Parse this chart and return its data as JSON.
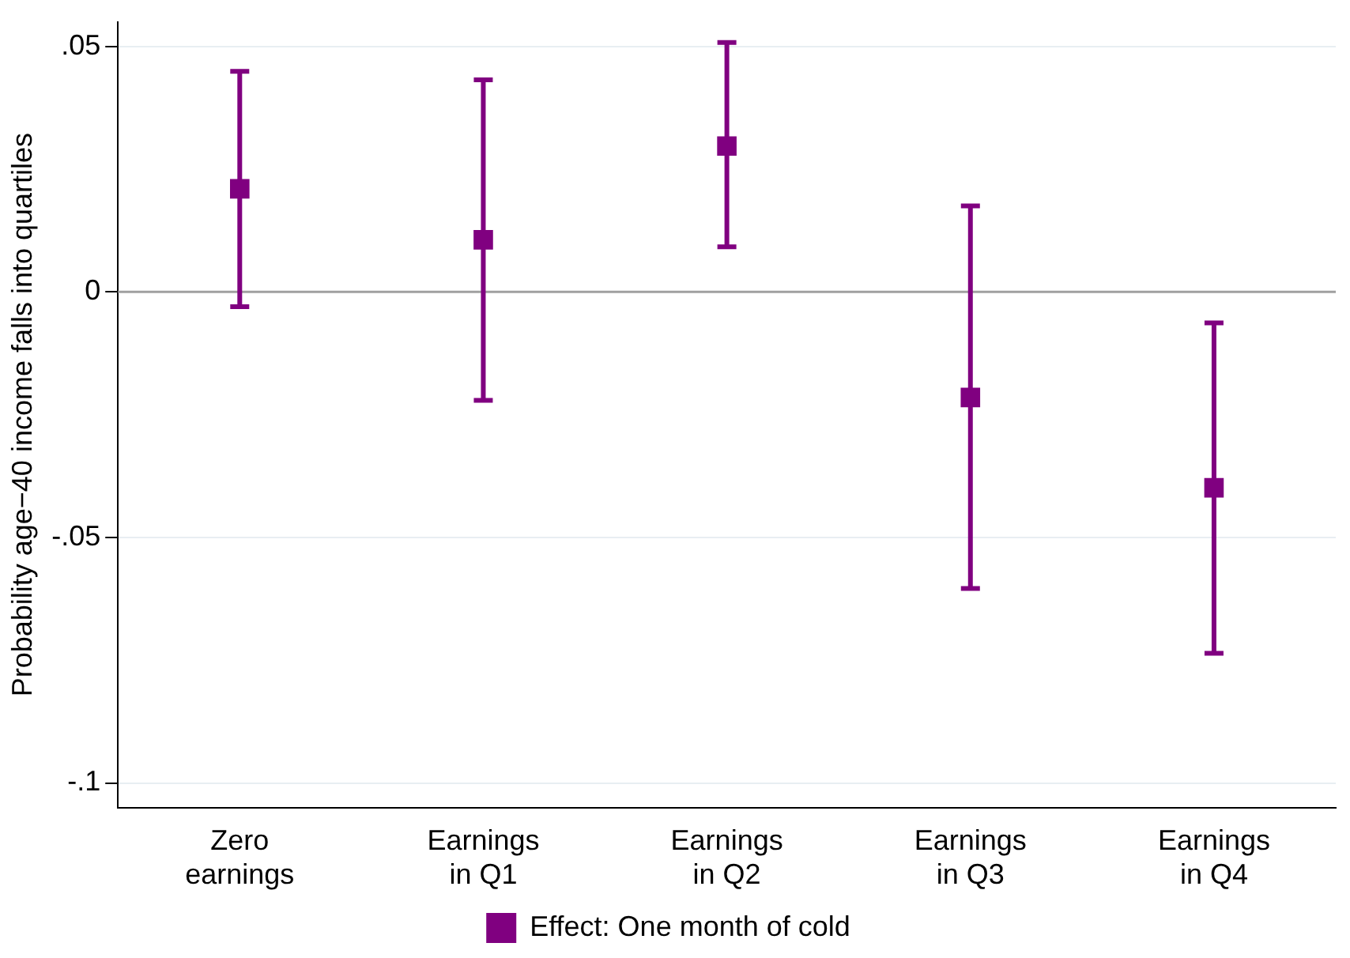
{
  "chart_data": {
    "type": "scatter",
    "ylabel": "Probability age−40 income falls into quartiles",
    "categories": [
      "Zero earnings",
      "Earnings in Q1",
      "Earnings in Q2",
      "Earnings in Q3",
      "Earnings in Q4"
    ],
    "series": [
      {
        "name": "Effect: One month of cold",
        "color": "#800080",
        "values": [
          0.021,
          0.0106,
          0.0297,
          -0.0215,
          -0.0399
        ],
        "errors": [
          [
            -0.003,
            0.0449
          ],
          [
            -0.0221,
            0.0432
          ],
          [
            0.0092,
            0.0508
          ],
          [
            -0.0604,
            0.0175
          ],
          [
            -0.0736,
            -0.0063
          ]
        ]
      }
    ],
    "ylim": [
      -0.105,
      0.055
    ],
    "yticks": [
      {
        "value": -0.1,
        "label": "-.1"
      },
      {
        "value": -0.05,
        "label": "-.05"
      },
      {
        "value": 0,
        "label": "0"
      },
      {
        "value": 0.05,
        "label": ".05"
      }
    ],
    "ref_lines": [
      {
        "axis": "y",
        "value": 0,
        "color": "#a0a0a0"
      }
    ],
    "grid": "y",
    "legend": "bottom",
    "marker": "square"
  }
}
